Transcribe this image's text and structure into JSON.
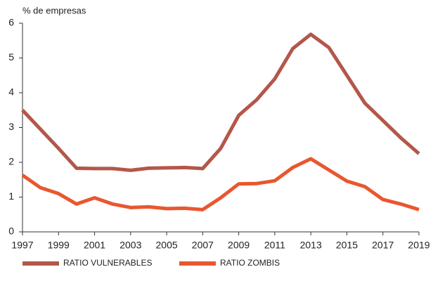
{
  "chart_data": {
    "type": "line",
    "y_axis_label": "% de empresas",
    "x": [
      1997,
      1998,
      1999,
      2000,
      2001,
      2002,
      2003,
      2004,
      2005,
      2006,
      2007,
      2008,
      2009,
      2010,
      2011,
      2012,
      2013,
      2014,
      2015,
      2016,
      2017,
      2018,
      2019
    ],
    "series": [
      {
        "name": "RATIO VULNERABLES",
        "color": "#b3574a",
        "values": [
          3.5,
          2.95,
          2.4,
          1.83,
          1.82,
          1.82,
          1.77,
          1.83,
          1.84,
          1.85,
          1.82,
          2.4,
          3.35,
          3.8,
          4.4,
          5.27,
          5.68,
          5.3,
          4.5,
          3.7,
          3.2,
          2.7,
          2.25
        ]
      },
      {
        "name": "RATIO ZOMBIS",
        "color": "#e9572f",
        "values": [
          1.63,
          1.27,
          1.1,
          0.8,
          0.98,
          0.8,
          0.7,
          0.72,
          0.67,
          0.68,
          0.64,
          0.98,
          1.38,
          1.39,
          1.47,
          1.85,
          2.1,
          1.78,
          1.46,
          1.3,
          0.93,
          0.8,
          0.64
        ]
      }
    ],
    "xlim": [
      1997,
      2019
    ],
    "xticks": [
      1997,
      1999,
      2001,
      2003,
      2005,
      2007,
      2009,
      2011,
      2013,
      2015,
      2017,
      2019
    ],
    "ylim": [
      0,
      6
    ],
    "yticks": [
      0,
      1,
      2,
      3,
      4,
      5,
      6
    ],
    "grid": false,
    "legend": "bottom"
  }
}
